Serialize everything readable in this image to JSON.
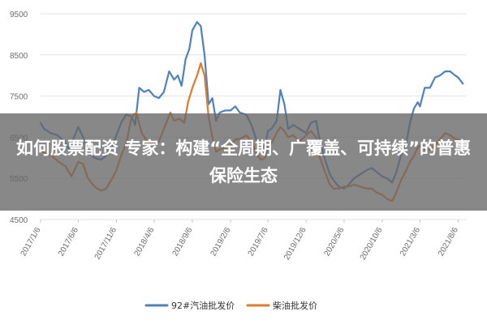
{
  "chart_data": {
    "type": "line",
    "ylim": [
      4500,
      9500
    ],
    "yticks": [
      4500,
      5500,
      6500,
      7500,
      8500,
      9500
    ],
    "x_ticks": [
      "2017/1/6",
      "2017/6/6",
      "2017/11/6",
      "2018/4/6",
      "2018/9/6",
      "2019/2/6",
      "2019/7/6",
      "2019/12/6",
      "2020/5/6",
      "2020/10/6",
      "2021/3/6",
      "2021/8/6"
    ],
    "x_range": [
      "2017/1/6",
      "2021/9/6"
    ],
    "grid": "horizontal",
    "legend_position": "bottom",
    "series": [
      {
        "name": "92#汽油批发价",
        "color": "#4e81bd",
        "points": [
          [
            "2017/1/6",
            6850
          ],
          [
            "2017/1/20",
            6700
          ],
          [
            "2017/2/15",
            6600
          ],
          [
            "2017/3/15",
            6550
          ],
          [
            "2017/4/10",
            6400
          ],
          [
            "2017/5/1",
            6200
          ],
          [
            "2017/5/20",
            6500
          ],
          [
            "2017/6/6",
            6750
          ],
          [
            "2017/6/25",
            6500
          ],
          [
            "2017/7/15",
            6150
          ],
          [
            "2017/8/10",
            6000
          ],
          [
            "2017/9/5",
            5950
          ],
          [
            "2017/9/25",
            6050
          ],
          [
            "2017/10/20",
            6300
          ],
          [
            "2017/11/6",
            6550
          ],
          [
            "2017/11/25",
            6850
          ],
          [
            "2017/12/15",
            7050
          ],
          [
            "2018/1/6",
            7000
          ],
          [
            "2018/1/20",
            6800
          ],
          [
            "2018/2/5",
            7700
          ],
          [
            "2018/2/25",
            7600
          ],
          [
            "2018/3/15",
            7650
          ],
          [
            "2018/4/6",
            7500
          ],
          [
            "2018/4/25",
            7450
          ],
          [
            "2018/5/15",
            7600
          ],
          [
            "2018/6/5",
            8100
          ],
          [
            "2018/6/25",
            7900
          ],
          [
            "2018/7/10",
            8000
          ],
          [
            "2018/7/25",
            7750
          ],
          [
            "2018/8/10",
            8400
          ],
          [
            "2018/8/25",
            8650
          ],
          [
            "2018/9/6",
            9100
          ],
          [
            "2018/9/25",
            9300
          ],
          [
            "2018/10/10",
            9200
          ],
          [
            "2018/10/25",
            8500
          ],
          [
            "2018/11/10",
            7300
          ],
          [
            "2018/11/25",
            7450
          ],
          [
            "2018/12/10",
            6900
          ],
          [
            "2018/12/25",
            7100
          ],
          [
            "2019/1/15",
            7150
          ],
          [
            "2019/2/6",
            7150
          ],
          [
            "2019/2/25",
            7250
          ],
          [
            "2019/3/15",
            7100
          ],
          [
            "2019/4/10",
            7050
          ],
          [
            "2019/5/1",
            6800
          ],
          [
            "2019/5/25",
            6350
          ],
          [
            "2019/6/10",
            6200
          ],
          [
            "2019/6/25",
            6300
          ],
          [
            "2019/7/6",
            6650
          ],
          [
            "2019/7/20",
            6700
          ],
          [
            "2019/8/10",
            6900
          ],
          [
            "2019/8/25",
            7650
          ],
          [
            "2019/9/10",
            7300
          ],
          [
            "2019/9/25",
            6700
          ],
          [
            "2019/10/15",
            6800
          ],
          [
            "2019/11/10",
            6700
          ],
          [
            "2019/12/6",
            6600
          ],
          [
            "2019/12/25",
            6850
          ],
          [
            "2020/1/15",
            6900
          ],
          [
            "2020/1/30",
            6400
          ],
          [
            "2020/2/20",
            5950
          ],
          [
            "2020/3/10",
            5600
          ],
          [
            "2020/3/25",
            5450
          ],
          [
            "2020/4/15",
            5300
          ],
          [
            "2020/5/6",
            5250
          ],
          [
            "2020/5/25",
            5350
          ],
          [
            "2020/6/15",
            5500
          ],
          [
            "2020/7/10",
            5600
          ],
          [
            "2020/8/5",
            5700
          ],
          [
            "2020/8/25",
            5750
          ],
          [
            "2020/9/15",
            5650
          ],
          [
            "2020/10/6",
            5550
          ],
          [
            "2020/10/25",
            5500
          ],
          [
            "2020/11/15",
            5400
          ],
          [
            "2020/12/1",
            5650
          ],
          [
            "2020/12/20",
            6050
          ],
          [
            "2021/1/10",
            6350
          ],
          [
            "2021/1/25",
            6850
          ],
          [
            "2021/2/10",
            7200
          ],
          [
            "2021/2/25",
            7350
          ],
          [
            "2021/3/6",
            7250
          ],
          [
            "2021/3/25",
            7700
          ],
          [
            "2021/4/15",
            7700
          ],
          [
            "2021/5/5",
            7950
          ],
          [
            "2021/5/25",
            8000
          ],
          [
            "2021/6/15",
            8100
          ],
          [
            "2021/7/5",
            8100
          ],
          [
            "2021/7/25",
            8000
          ],
          [
            "2021/8/6",
            7950
          ],
          [
            "2021/8/25",
            7800
          ]
        ]
      },
      {
        "name": "柴油批发价",
        "color": "#e07a2c",
        "points": [
          [
            "2017/1/6",
            6200
          ],
          [
            "2017/1/25",
            6100
          ],
          [
            "2017/2/20",
            6050
          ],
          [
            "2017/3/20",
            5900
          ],
          [
            "2017/4/15",
            5800
          ],
          [
            "2017/5/10",
            5550
          ],
          [
            "2017/6/6",
            5900
          ],
          [
            "2017/6/25",
            5850
          ],
          [
            "2017/7/15",
            5500
          ],
          [
            "2017/8/10",
            5300
          ],
          [
            "2017/9/5",
            5200
          ],
          [
            "2017/9/25",
            5250
          ],
          [
            "2017/10/20",
            5500
          ],
          [
            "2017/11/6",
            5700
          ],
          [
            "2017/11/25",
            6050
          ],
          [
            "2017/12/15",
            6350
          ],
          [
            "2018/1/6",
            7000
          ],
          [
            "2018/1/25",
            7100
          ],
          [
            "2018/2/15",
            6600
          ],
          [
            "2018/3/10",
            6400
          ],
          [
            "2018/4/6",
            6300
          ],
          [
            "2018/4/25",
            6400
          ],
          [
            "2018/5/15",
            6700
          ],
          [
            "2018/6/10",
            7100
          ],
          [
            "2018/6/25",
            6900
          ],
          [
            "2018/7/15",
            6950
          ],
          [
            "2018/8/5",
            6850
          ],
          [
            "2018/8/20",
            7350
          ],
          [
            "2018/9/6",
            7700
          ],
          [
            "2018/9/25",
            8000
          ],
          [
            "2018/10/10",
            8300
          ],
          [
            "2018/10/25",
            8000
          ],
          [
            "2018/11/10",
            7000
          ],
          [
            "2018/11/25",
            6500
          ],
          [
            "2018/12/10",
            6150
          ],
          [
            "2018/12/25",
            6200
          ],
          [
            "2019/1/15",
            6250
          ],
          [
            "2019/2/6",
            6300
          ],
          [
            "2019/2/25",
            6450
          ],
          [
            "2019/3/15",
            6450
          ],
          [
            "2019/4/10",
            6550
          ],
          [
            "2019/5/1",
            6400
          ],
          [
            "2019/5/25",
            6050
          ],
          [
            "2019/6/10",
            5950
          ],
          [
            "2019/6/25",
            6000
          ],
          [
            "2019/7/6",
            6300
          ],
          [
            "2019/7/20",
            6350
          ],
          [
            "2019/8/10",
            6600
          ],
          [
            "2019/8/25",
            6750
          ],
          [
            "2019/9/10",
            6650
          ],
          [
            "2019/9/25",
            6500
          ],
          [
            "2019/10/15",
            6550
          ],
          [
            "2019/11/10",
            6400
          ],
          [
            "2019/12/6",
            6550
          ],
          [
            "2019/12/25",
            6650
          ],
          [
            "2020/1/15",
            6500
          ],
          [
            "2020/1/30",
            6000
          ],
          [
            "2020/2/20",
            5650
          ],
          [
            "2020/3/10",
            5350
          ],
          [
            "2020/3/25",
            5250
          ],
          [
            "2020/4/15",
            5250
          ],
          [
            "2020/5/6",
            5300
          ],
          [
            "2020/5/25",
            5300
          ],
          [
            "2020/6/15",
            5350
          ],
          [
            "2020/7/10",
            5300
          ],
          [
            "2020/8/5",
            5250
          ],
          [
            "2020/8/25",
            5250
          ],
          [
            "2020/9/15",
            5150
          ],
          [
            "2020/10/6",
            5100
          ],
          [
            "2020/10/25",
            5000
          ],
          [
            "2020/11/15",
            4950
          ],
          [
            "2020/12/1",
            5150
          ],
          [
            "2020/12/20",
            5450
          ],
          [
            "2021/1/10",
            5700
          ],
          [
            "2021/1/25",
            5900
          ],
          [
            "2021/2/10",
            6050
          ],
          [
            "2021/2/25",
            6250
          ],
          [
            "2021/3/6",
            6300
          ],
          [
            "2021/3/25",
            6200
          ],
          [
            "2021/4/15",
            6200
          ],
          [
            "2021/5/5",
            6300
          ],
          [
            "2021/5/25",
            6450
          ],
          [
            "2021/6/15",
            6600
          ],
          [
            "2021/7/5",
            6550
          ],
          [
            "2021/7/25",
            6450
          ],
          [
            "2021/8/6",
            6450
          ],
          [
            "2021/8/25",
            6300
          ]
        ]
      }
    ]
  },
  "overlay": {
    "title": "如何股票配资 专家：构建“全周期、广覆盖、可持续”的普惠保险生态"
  }
}
